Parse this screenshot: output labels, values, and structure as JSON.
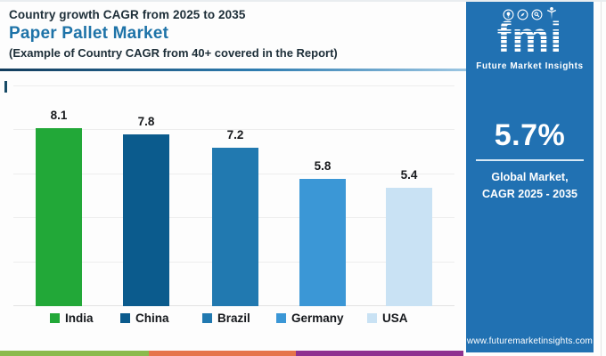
{
  "header": {
    "kicker": "Country growth CAGR from 2025 to 2035",
    "title": "Paper Pallet Market",
    "subtitle": "(Example of Country CAGR from 40+ covered in the Report)"
  },
  "chart_data": {
    "type": "bar",
    "title": "Paper Pallet Market",
    "subtitle": "Country growth CAGR from 2025 to 2035",
    "categories": [
      "India",
      "China",
      "Brazil",
      "Germany",
      "USA"
    ],
    "values": [
      8.1,
      7.8,
      7.2,
      5.8,
      5.4
    ],
    "value_labels": [
      "8.1",
      "7.8",
      "7.2",
      "5.8",
      "5.4"
    ],
    "colors": [
      "#22a838",
      "#0b5b8d",
      "#2179b0",
      "#3b97d6",
      "#c9e2f4"
    ],
    "xlabel": "",
    "ylabel": "",
    "ylim": [
      0,
      10
    ],
    "gridline_values": [
      0,
      2,
      4,
      6,
      8,
      10
    ],
    "grid": true,
    "legend_position": "bottom"
  },
  "sidebar": {
    "logo_text": "fmi",
    "logo_tagline": "Future Market Insights",
    "logo_icons": [
      "lightbulb-icon",
      "compass-icon",
      "magnifier-icon",
      "person-icon"
    ],
    "stat_value": "5.7%",
    "stat_caption_line1": "Global Market,",
    "stat_caption_line2": "CAGR 2025 - 2035",
    "website": "www.futuremarketinsights.com",
    "bg_color": "#2171b2"
  },
  "footer_stripe": {
    "colors": [
      "#8bba4c",
      "#e5744b",
      "#8e3190"
    ]
  }
}
